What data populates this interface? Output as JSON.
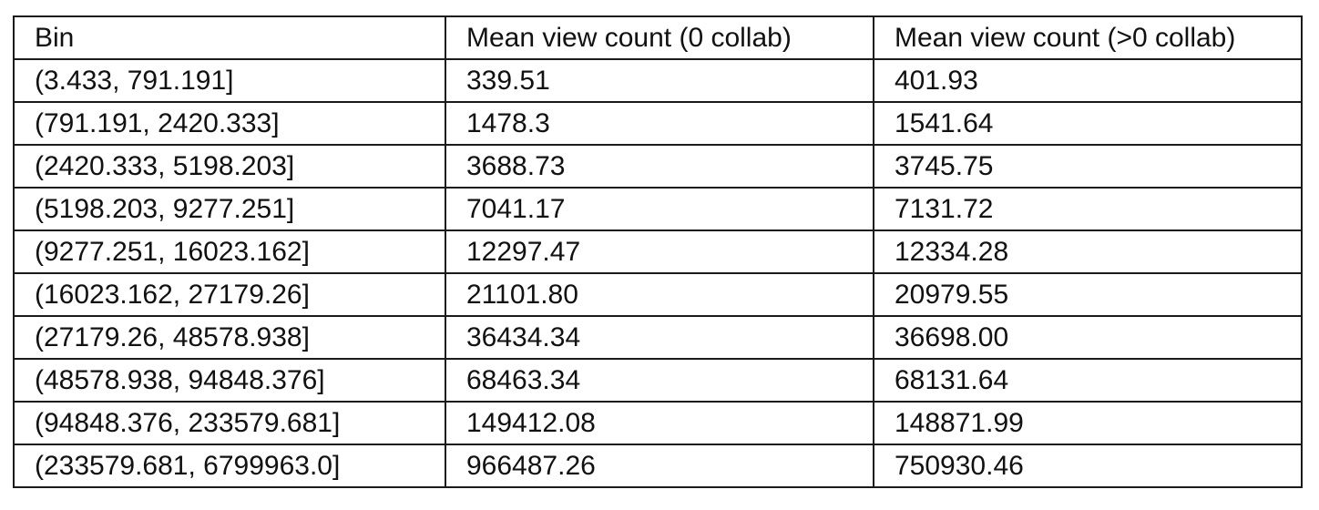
{
  "table": {
    "headers": [
      "Bin",
      "Mean view count (0 collab)",
      "Mean view count (>0 collab)"
    ],
    "rows": [
      [
        "(3.433, 791.191]",
        "339.51",
        "401.93"
      ],
      [
        "(791.191, 2420.333]",
        "1478.3",
        "1541.64"
      ],
      [
        "(2420.333, 5198.203]",
        "3688.73",
        "3745.75"
      ],
      [
        "(5198.203, 9277.251]",
        "7041.17",
        "7131.72"
      ],
      [
        "(9277.251, 16023.162]",
        "12297.47",
        "12334.28"
      ],
      [
        "(16023.162, 27179.26]",
        "21101.80",
        "20979.55"
      ],
      [
        "(27179.26, 48578.938]",
        "36434.34",
        "36698.00"
      ],
      [
        "(48578.938, 94848.376]",
        "68463.34",
        "68131.64"
      ],
      [
        "(94848.376, 233579.681]",
        "149412.08",
        "148871.99"
      ],
      [
        "(233579.681, 6799963.0]",
        "966487.26",
        "750930.46"
      ]
    ]
  }
}
